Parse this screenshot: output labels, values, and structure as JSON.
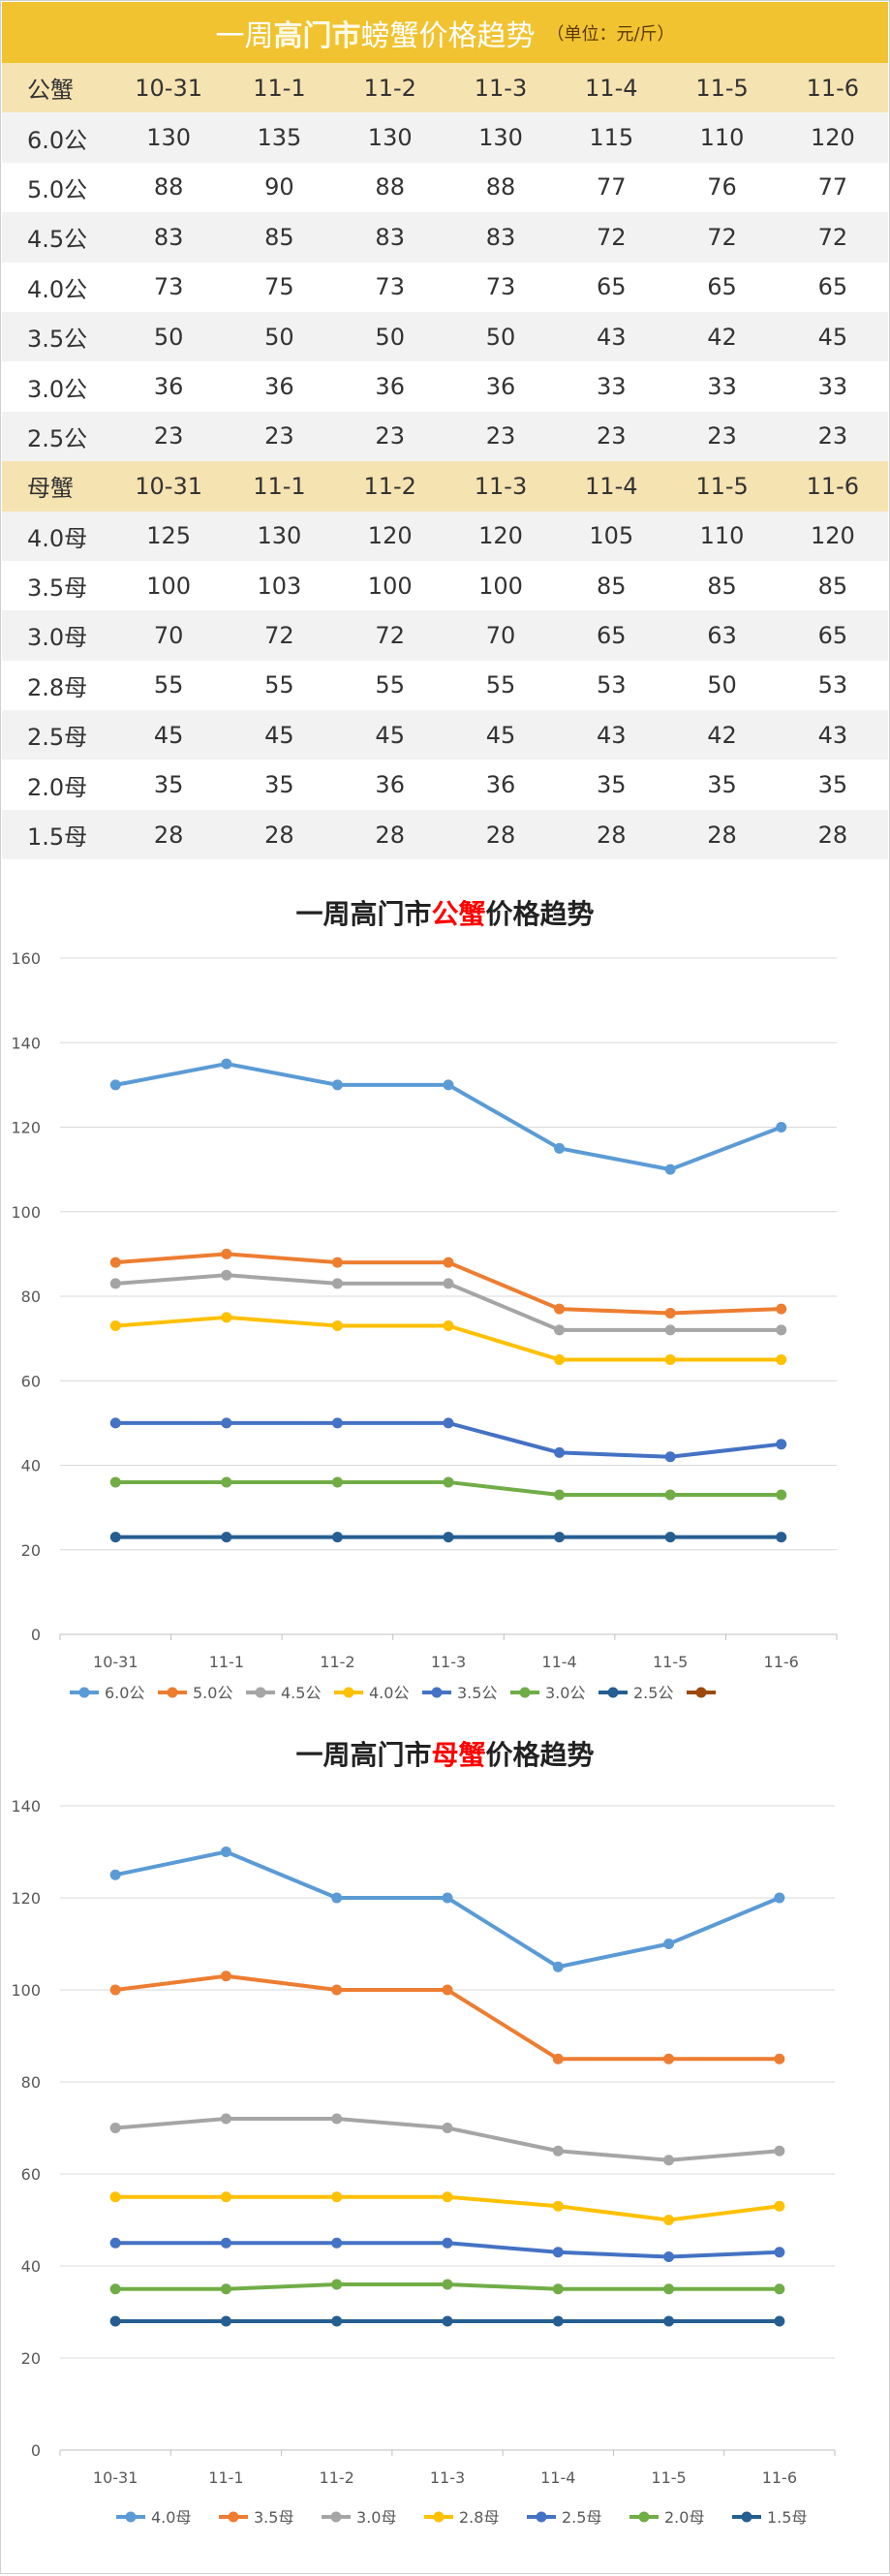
{
  "banner": {
    "part1": "一周",
    "part2": "高门市",
    "part3": "螃蟹价格趋势",
    "unit": "（单位：元/斤）"
  },
  "table": {
    "male_header": [
      "公蟹",
      "10-31",
      "11-1",
      "11-2",
      "11-3",
      "11-4",
      "11-5",
      "11-6"
    ],
    "male_rows": [
      [
        "6.0公",
        "130",
        "135",
        "130",
        "130",
        "115",
        "110",
        "120"
      ],
      [
        "5.0公",
        "88",
        "90",
        "88",
        "88",
        "77",
        "76",
        "77"
      ],
      [
        "4.5公",
        "83",
        "85",
        "83",
        "83",
        "72",
        "72",
        "72"
      ],
      [
        "4.0公",
        "73",
        "75",
        "73",
        "73",
        "65",
        "65",
        "65"
      ],
      [
        "3.5公",
        "50",
        "50",
        "50",
        "50",
        "43",
        "42",
        "45"
      ],
      [
        "3.0公",
        "36",
        "36",
        "36",
        "36",
        "33",
        "33",
        "33"
      ],
      [
        "2.5公",
        "23",
        "23",
        "23",
        "23",
        "23",
        "23",
        "23"
      ]
    ],
    "female_header": [
      "母蟹",
      "10-31",
      "11-1",
      "11-2",
      "11-3",
      "11-4",
      "11-5",
      "11-6"
    ],
    "female_rows": [
      [
        "4.0母",
        "125",
        "130",
        "120",
        "120",
        "105",
        "110",
        "120"
      ],
      [
        "3.5母",
        "100",
        "103",
        "100",
        "100",
        "85",
        "85",
        "85"
      ],
      [
        "3.0母",
        "70",
        "72",
        "72",
        "70",
        "65",
        "63",
        "65"
      ],
      [
        "2.8母",
        "55",
        "55",
        "55",
        "55",
        "53",
        "50",
        "53"
      ],
      [
        "2.5母",
        "45",
        "45",
        "45",
        "45",
        "43",
        "42",
        "43"
      ],
      [
        "2.0母",
        "35",
        "35",
        "36",
        "36",
        "35",
        "35",
        "35"
      ],
      [
        "1.5母",
        "28",
        "28",
        "28",
        "28",
        "28",
        "28",
        "28"
      ]
    ]
  },
  "chart_data": [
    {
      "type": "line",
      "title_parts": [
        "一周高门市",
        "公蟹",
        "价格趋势"
      ],
      "title_highlight_color": "#ff0000",
      "categories": [
        "10-31",
        "11-1",
        "11-2",
        "11-3",
        "11-4",
        "11-5",
        "11-6"
      ],
      "ylim": [
        0,
        160
      ],
      "yticks": [
        0,
        20,
        40,
        60,
        80,
        100,
        120,
        140,
        160
      ],
      "grid": true,
      "legend": "bottom",
      "series": [
        {
          "name": "6.0公",
          "color": "#5b9bd5",
          "values": [
            130,
            135,
            130,
            130,
            115,
            110,
            120
          ]
        },
        {
          "name": "5.0公",
          "color": "#ed7d31",
          "values": [
            88,
            90,
            88,
            88,
            77,
            76,
            77
          ]
        },
        {
          "name": "4.5公",
          "color": "#a5a5a5",
          "values": [
            83,
            85,
            83,
            83,
            72,
            72,
            72
          ]
        },
        {
          "name": "4.0公",
          "color": "#ffc000",
          "values": [
            73,
            75,
            73,
            73,
            65,
            65,
            65
          ]
        },
        {
          "name": "3.5公",
          "color": "#4472c4",
          "values": [
            50,
            50,
            50,
            50,
            43,
            42,
            45
          ]
        },
        {
          "name": "3.0公",
          "color": "#70ad47",
          "values": [
            36,
            36,
            36,
            36,
            33,
            33,
            33
          ]
        },
        {
          "name": "2.5公",
          "color": "#255e91",
          "values": [
            23,
            23,
            23,
            23,
            23,
            23,
            23
          ]
        }
      ],
      "extra_legend_color": "#9e480e"
    },
    {
      "type": "line",
      "title_parts": [
        "一周高门市",
        "母蟹",
        "价格趋势"
      ],
      "title_highlight_color": "#ff0000",
      "categories": [
        "10-31",
        "11-1",
        "11-2",
        "11-3",
        "11-4",
        "11-5",
        "11-6"
      ],
      "ylim": [
        0,
        140
      ],
      "yticks": [
        0,
        20,
        40,
        60,
        80,
        100,
        120,
        140
      ],
      "grid": true,
      "legend": "bottom",
      "series": [
        {
          "name": "4.0母",
          "color": "#5b9bd5",
          "values": [
            125,
            130,
            120,
            120,
            105,
            110,
            120
          ]
        },
        {
          "name": "3.5母",
          "color": "#ed7d31",
          "values": [
            100,
            103,
            100,
            100,
            85,
            85,
            85
          ]
        },
        {
          "name": "3.0母",
          "color": "#a5a5a5",
          "values": [
            70,
            72,
            72,
            70,
            65,
            63,
            65
          ]
        },
        {
          "name": "2.8母",
          "color": "#ffc000",
          "values": [
            55,
            55,
            55,
            55,
            53,
            50,
            53
          ]
        },
        {
          "name": "2.5母",
          "color": "#4472c4",
          "values": [
            45,
            45,
            45,
            45,
            43,
            42,
            43
          ]
        },
        {
          "name": "2.0母",
          "color": "#70ad47",
          "values": [
            35,
            35,
            36,
            36,
            35,
            35,
            35
          ]
        },
        {
          "name": "1.5母",
          "color": "#255e91",
          "values": [
            28,
            28,
            28,
            28,
            28,
            28,
            28
          ]
        }
      ]
    }
  ]
}
